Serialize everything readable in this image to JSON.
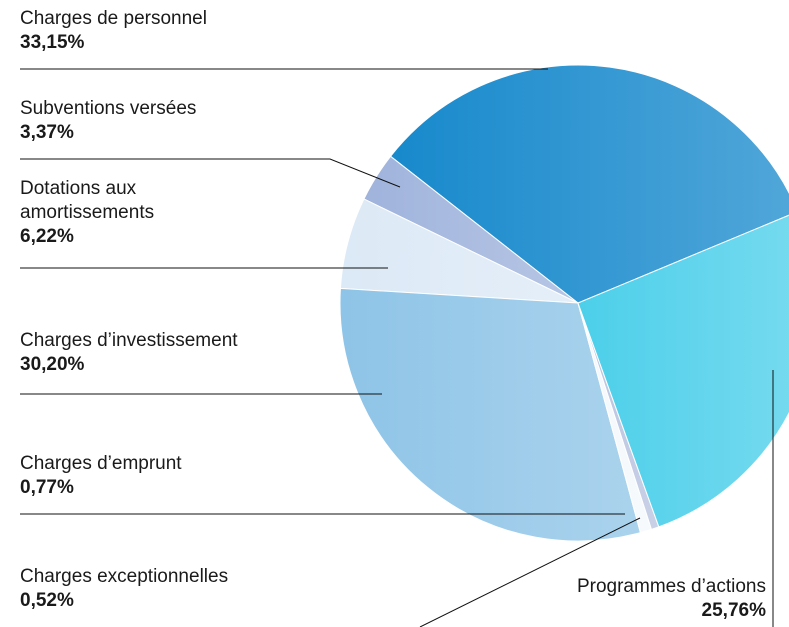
{
  "chart_data": {
    "type": "pie",
    "categories": [
      "Charges de personnel",
      "Subventions versées",
      "Dotations aux amortissements",
      "Charges d’investissement",
      "Charges d’emprunt",
      "Charges exceptionnelles",
      "Programmes d’actions"
    ],
    "values": [
      33.15,
      3.37,
      6.22,
      30.2,
      0.77,
      0.52,
      25.76
    ],
    "value_labels": [
      "33,15%",
      "3,37%",
      "6,22%",
      "30,20%",
      "0,77%",
      "0,52%",
      "25,76%"
    ],
    "colors": [
      "#1789cc",
      "#9fb3dc",
      "#dce9f6",
      "#8ec4e7",
      "#f4f8fc",
      "#b7c2df",
      "#4ccfea"
    ]
  }
}
